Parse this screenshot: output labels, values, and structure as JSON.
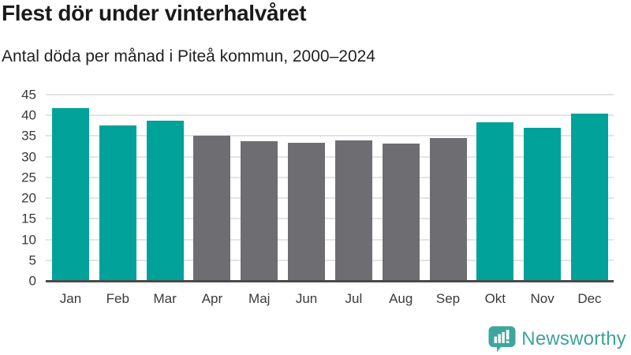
{
  "header": {
    "title": "Flest dör under vinterhalvåret",
    "subtitle": "Antal döda per månad i Piteå kommun, 2000–2024"
  },
  "chart_data": {
    "type": "bar",
    "title": "Flest dör under vinterhalvåret",
    "subtitle": "Antal döda per månad i Piteå kommun, 2000–2024",
    "categories": [
      "Jan",
      "Feb",
      "Mar",
      "Apr",
      "Maj",
      "Jun",
      "Jul",
      "Aug",
      "Sep",
      "Okt",
      "Nov",
      "Dec"
    ],
    "values": [
      41.8,
      37.6,
      38.7,
      35.0,
      33.8,
      33.4,
      34.0,
      33.1,
      34.6,
      38.4,
      36.9,
      40.4
    ],
    "bar_colors": [
      "#00a29a",
      "#00a29a",
      "#00a29a",
      "#6d6d72",
      "#6d6d72",
      "#6d6d72",
      "#6d6d72",
      "#6d6d72",
      "#6d6d72",
      "#00a29a",
      "#00a29a",
      "#00a29a"
    ],
    "xlabel": "",
    "ylabel": "",
    "ylim": [
      0,
      45
    ],
    "yticks": [
      0,
      5,
      10,
      15,
      20,
      25,
      30,
      35,
      40,
      45
    ],
    "grid": true,
    "legend_position": "none"
  },
  "footer": {
    "brand": "Newsworthy"
  },
  "colors": {
    "winter_bar": "#00a29a",
    "summer_bar": "#6d6d72",
    "gridline": "#e4e4e4",
    "axis_line": "#4a4a4a",
    "title_text": "#1a1a1a",
    "tick_text": "#3a3a3a",
    "brand": "#3fa29b",
    "background": "#ffffff"
  }
}
